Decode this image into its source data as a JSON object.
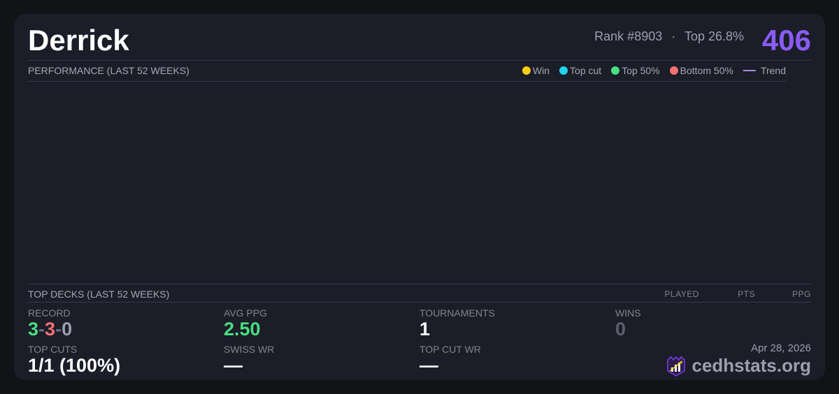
{
  "player": {
    "name": "Derrick",
    "rank": "Rank #8903",
    "sep": "·",
    "top": "Top 26.8%",
    "score": "406"
  },
  "performance": {
    "title": "PERFORMANCE (LAST 52 WEEKS)",
    "legend": [
      {
        "label": "Win",
        "color": "#facc15"
      },
      {
        "label": "Top cut",
        "color": "#22d3ee"
      },
      {
        "label": "Top 50%",
        "color": "#4ade80"
      },
      {
        "label": "Bottom 50%",
        "color": "#f87171"
      },
      {
        "label": "Trend",
        "color": "#a78bfa"
      }
    ]
  },
  "decks": {
    "title": "TOP DECKS (LAST 52 WEEKS)",
    "columns": [
      "PLAYED",
      "PTS",
      "PPG"
    ]
  },
  "stats": {
    "record": {
      "label": "RECORD",
      "wins": "3",
      "losses": "3",
      "draws": "0",
      "sep": "-"
    },
    "avg_ppg": {
      "label": "AVG PPG",
      "value": "2.50"
    },
    "tournaments": {
      "label": "TOURNAMENTS",
      "value": "1"
    },
    "wins": {
      "label": "WINS",
      "value": "0"
    },
    "top_cuts": {
      "label": "TOP CUTS",
      "value": "1/1 (100%)"
    },
    "swiss_wr": {
      "label": "SWISS WR",
      "value": "—"
    },
    "top_cut_wr": {
      "label": "TOP CUT WR",
      "value": "—"
    }
  },
  "footer": {
    "date": "Apr 28, 2026",
    "brand": "cedhstats.org"
  },
  "colors": {
    "accent": "#8b5cf6",
    "win": "#4ade80",
    "loss": "#f87171",
    "draw": "#9ca0ad"
  }
}
